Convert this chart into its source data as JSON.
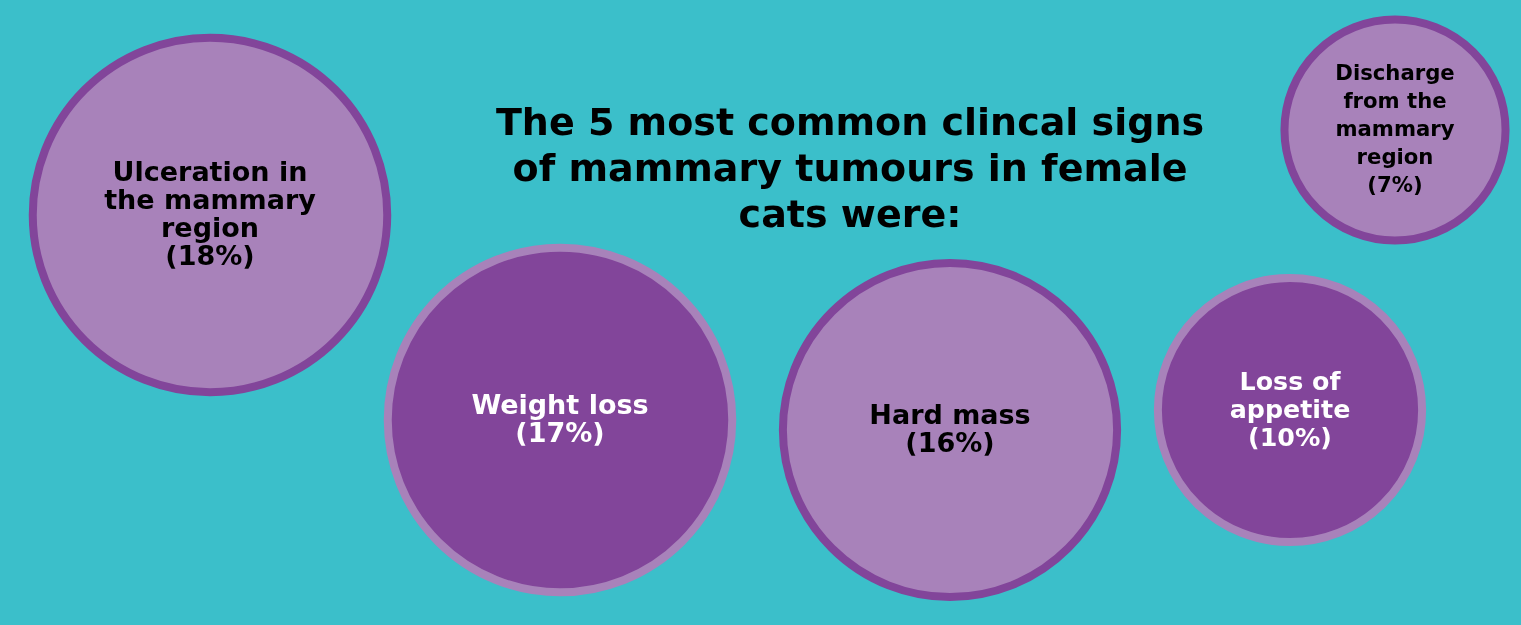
{
  "chart_data": {
    "type": "other",
    "title": "The 5 most common clincal signs of mammary tumours in female cats were:",
    "categories": [
      "Ulceration in the mammary region",
      "Weight loss",
      "Hard mass",
      "Loss of appetite",
      "Discharge from the mammary region"
    ],
    "values": [
      18,
      17,
      16,
      10,
      7
    ],
    "value_labels": [
      "(18%)",
      "(17%)",
      "(16%)",
      "(10%)",
      "(7%)"
    ],
    "colors": [
      "#a882ba",
      "#82459a",
      "#a882ba",
      "#82459a",
      "#a882ba"
    ]
  }
}
